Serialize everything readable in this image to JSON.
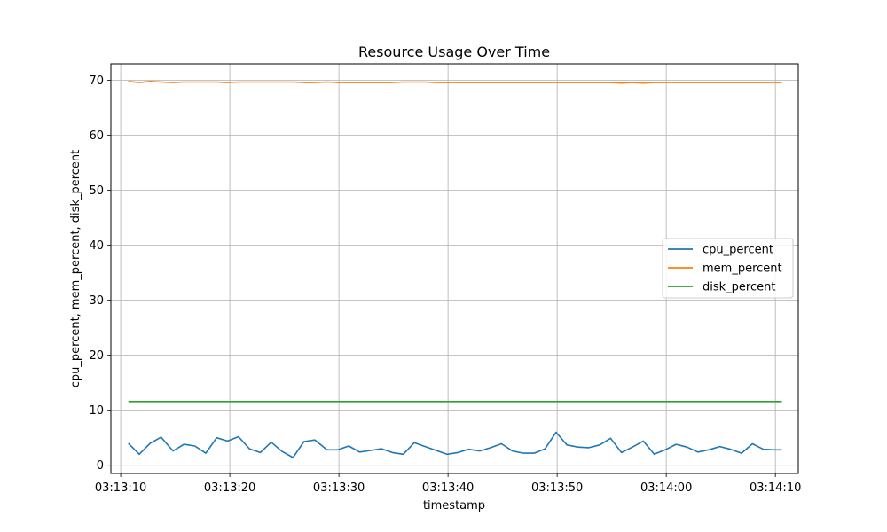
{
  "chart_data": {
    "type": "line",
    "title": "Resource Usage Over Time",
    "xlabel": "timestamp",
    "ylabel": "cpu_percent, mem_percent, disk_percent",
    "xlim": [
      "03:13:09.1",
      "03:14:12.1"
    ],
    "ylim": [
      -1.5,
      73
    ],
    "x_ticks": [
      "03:13:10",
      "03:13:20",
      "03:13:30",
      "03:13:40",
      "03:13:50",
      "03:14:00",
      "03:14:10"
    ],
    "y_ticks": [
      0,
      10,
      20,
      30,
      40,
      50,
      60,
      70
    ],
    "grid": true,
    "legend_position": "center-right",
    "x": [
      "03:13:10.7",
      "03:13:11.7",
      "03:13:12.7",
      "03:13:13.7",
      "03:13:14.8",
      "03:13:15.8",
      "03:13:16.8",
      "03:13:17.8",
      "03:13:18.8",
      "03:13:19.8",
      "03:13:20.8",
      "03:13:21.8",
      "03:13:22.8",
      "03:13:23.8",
      "03:13:24.8",
      "03:13:25.8",
      "03:13:26.8",
      "03:13:27.8",
      "03:13:28.9",
      "03:13:29.9",
      "03:13:30.9",
      "03:13:31.9",
      "03:13:32.9",
      "03:13:33.9",
      "03:13:34.9",
      "03:13:35.9",
      "03:13:36.9",
      "03:13:37.9",
      "03:13:38.9",
      "03:13:39.9",
      "03:13:40.9",
      "03:13:41.9",
      "03:13:42.9",
      "03:13:43.9",
      "03:13:44.9",
      "03:13:45.9",
      "03:13:46.9",
      "03:13:47.9",
      "03:13:48.9",
      "03:13:49.9",
      "03:13:50.9",
      "03:13:51.9",
      "03:13:52.9",
      "03:13:53.9",
      "03:13:54.9",
      "03:13:55.9",
      "03:13:56.9",
      "03:13:57.9",
      "03:13:58.9",
      "03:13:59.9",
      "03:14:00.9",
      "03:14:01.9",
      "03:14:02.9",
      "03:14:03.9",
      "03:14:04.9",
      "03:14:05.9",
      "03:14:06.9",
      "03:14:07.9",
      "03:14:08.9",
      "03:14:09.9",
      "03:14:10.6"
    ],
    "series": [
      {
        "name": "cpu_percent",
        "color": "#1f77b4",
        "values": [
          4.0,
          2.0,
          4.0,
          5.1,
          2.6,
          3.8,
          3.5,
          2.2,
          5.0,
          4.4,
          5.2,
          3.0,
          2.3,
          4.2,
          2.5,
          1.4,
          4.3,
          4.6,
          2.8,
          2.8,
          3.5,
          2.4,
          2.7,
          3.0,
          2.3,
          2.0,
          4.1,
          3.4,
          2.7,
          2.0,
          2.3,
          2.9,
          2.6,
          3.2,
          3.9,
          2.6,
          2.2,
          2.2,
          3.0,
          6.0,
          3.7,
          3.3,
          3.2,
          3.7,
          4.9,
          2.3,
          3.3,
          4.4,
          2.0,
          2.8,
          3.8,
          3.3,
          2.4,
          2.8,
          3.4,
          2.9,
          2.2,
          3.9,
          2.9,
          2.8,
          2.8
        ]
      },
      {
        "name": "mem_percent",
        "color": "#ff7f0e",
        "values": [
          69.8,
          69.6,
          69.8,
          69.7,
          69.6,
          69.7,
          69.7,
          69.7,
          69.7,
          69.6,
          69.7,
          69.7,
          69.7,
          69.7,
          69.7,
          69.7,
          69.6,
          69.6,
          69.7,
          69.6,
          69.6,
          69.6,
          69.6,
          69.6,
          69.6,
          69.7,
          69.7,
          69.7,
          69.6,
          69.6,
          69.6,
          69.6,
          69.6,
          69.6,
          69.6,
          69.6,
          69.6,
          69.6,
          69.6,
          69.6,
          69.6,
          69.6,
          69.6,
          69.6,
          69.6,
          69.5,
          69.6,
          69.5,
          69.6,
          69.6,
          69.6,
          69.6,
          69.6,
          69.6,
          69.6,
          69.6,
          69.6,
          69.6,
          69.6,
          69.6,
          69.6
        ]
      },
      {
        "name": "disk_percent",
        "color": "#2ca02c",
        "values": [
          11.6,
          11.6,
          11.6,
          11.6,
          11.6,
          11.6,
          11.6,
          11.6,
          11.6,
          11.6,
          11.6,
          11.6,
          11.6,
          11.6,
          11.6,
          11.6,
          11.6,
          11.6,
          11.6,
          11.6,
          11.6,
          11.6,
          11.6,
          11.6,
          11.6,
          11.6,
          11.6,
          11.6,
          11.6,
          11.6,
          11.6,
          11.6,
          11.6,
          11.6,
          11.6,
          11.6,
          11.6,
          11.6,
          11.6,
          11.6,
          11.6,
          11.6,
          11.6,
          11.6,
          11.6,
          11.6,
          11.6,
          11.6,
          11.6,
          11.6,
          11.6,
          11.6,
          11.6,
          11.6,
          11.6,
          11.6,
          11.6,
          11.6,
          11.6,
          11.6,
          11.6
        ]
      }
    ]
  }
}
